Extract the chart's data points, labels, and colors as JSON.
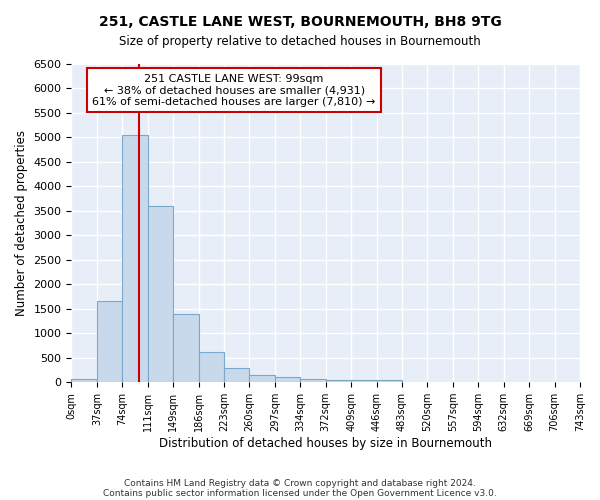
{
  "title": "251, CASTLE LANE WEST, BOURNEMOUTH, BH8 9TG",
  "subtitle": "Size of property relative to detached houses in Bournemouth",
  "xlabel": "Distribution of detached houses by size in Bournemouth",
  "ylabel": "Number of detached properties",
  "bin_edges": [
    0,
    37,
    74,
    111,
    148,
    185,
    222,
    259,
    296,
    333,
    370,
    407,
    444,
    481,
    518,
    555,
    592,
    629,
    666,
    703,
    740
  ],
  "bin_labels": [
    "0sqm",
    "37sqm",
    "74sqm",
    "111sqm",
    "149sqm",
    "186sqm",
    "223sqm",
    "260sqm",
    "297sqm",
    "334sqm",
    "372sqm",
    "409sqm",
    "446sqm",
    "483sqm",
    "520sqm",
    "557sqm",
    "594sqm",
    "632sqm",
    "669sqm",
    "706sqm",
    "743sqm"
  ],
  "counts": [
    75,
    1650,
    5050,
    3600,
    1400,
    610,
    300,
    155,
    100,
    75,
    50,
    50,
    50,
    0,
    0,
    0,
    0,
    0,
    0,
    0
  ],
  "bar_color": "#c9d9ec",
  "bar_edge_color": "#7aa8cc",
  "property_size": 99,
  "vline_color": "#cc0000",
  "annotation_text": "251 CASTLE LANE WEST: 99sqm\n← 38% of detached houses are smaller (4,931)\n61% of semi-detached houses are larger (7,810) →",
  "annotation_box_color": "#ffffff",
  "annotation_box_edge": "#cc0000",
  "ylim": [
    0,
    6500
  ],
  "yticks": [
    0,
    500,
    1000,
    1500,
    2000,
    2500,
    3000,
    3500,
    4000,
    4500,
    5000,
    5500,
    6000,
    6500
  ],
  "background_color": "#e8eef8",
  "grid_color": "#ffffff",
  "footer_lines": [
    "Contains HM Land Registry data © Crown copyright and database right 2024.",
    "Contains public sector information licensed under the Open Government Licence v3.0."
  ]
}
